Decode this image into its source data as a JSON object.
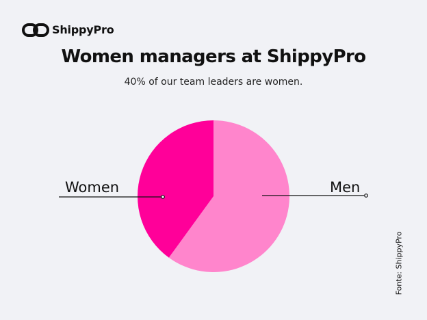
{
  "brand": {
    "name": "ShippyPro",
    "logo_icon": "infinity-link-icon"
  },
  "header": {
    "title": "Women managers at ShippyPro",
    "subtitle": "40% of our team leaders are women."
  },
  "source": "Fonte: ShippyPro",
  "colors": {
    "background": "#f1f2f6",
    "women": "#ff0099",
    "men": "#ff85cc",
    "text": "#111111"
  },
  "chart_data": {
    "type": "pie",
    "categories": [
      "Women",
      "Men"
    ],
    "values": [
      40,
      60
    ],
    "colors": [
      "#ff0099",
      "#ff85cc"
    ]
  }
}
